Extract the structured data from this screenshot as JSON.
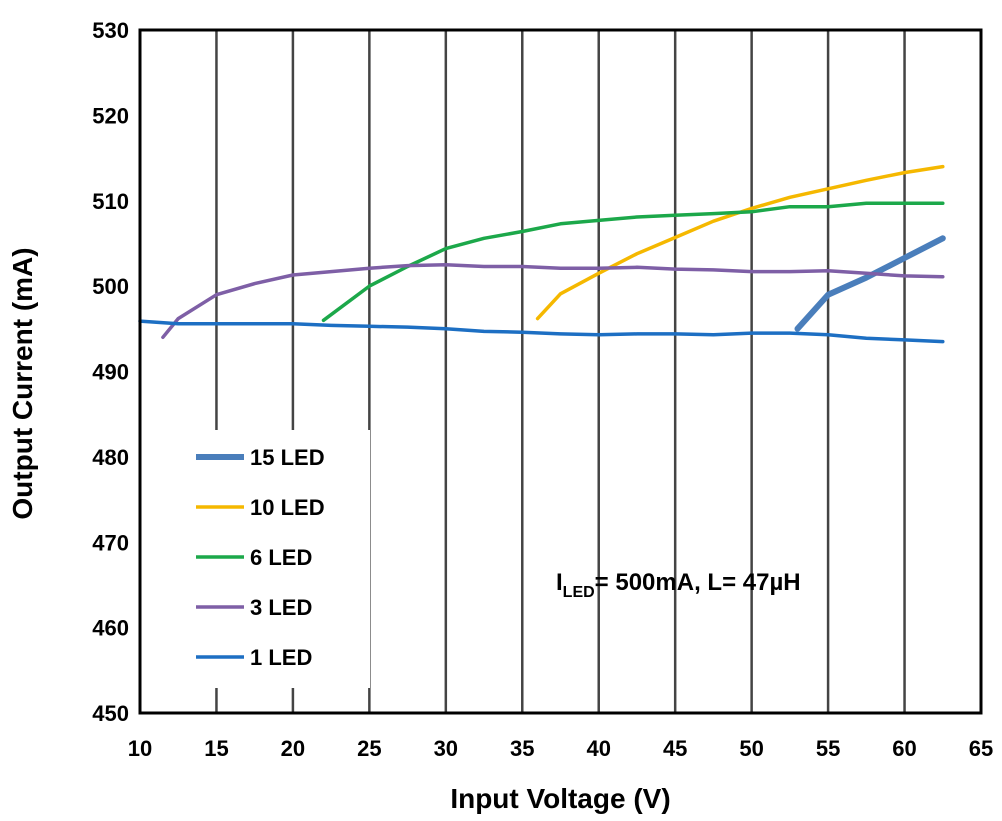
{
  "chart_data": {
    "type": "line",
    "title": "",
    "xlabel": "Input Voltage (V)",
    "ylabel": "Output Current (mA)",
    "xlim": [
      10,
      65
    ],
    "ylim": [
      450,
      530
    ],
    "xticks": [
      10,
      15,
      20,
      25,
      30,
      35,
      40,
      45,
      50,
      55,
      60,
      65
    ],
    "yticks": [
      450,
      460,
      470,
      480,
      490,
      500,
      510,
      520,
      530
    ],
    "grid": "vertical",
    "legend_position": "bottom-left",
    "annotation": {
      "main": "I",
      "sub": "LED",
      "rest": "= 500mA, L= 47µH"
    },
    "series": [
      {
        "name": "15 LED",
        "color": "#4a7ebb",
        "width": 6,
        "x": [
          53,
          55,
          57.5,
          60,
          62.5
        ],
        "y": [
          495,
          499,
          501,
          503.3,
          505.6
        ]
      },
      {
        "name": "10 LED",
        "color": "#f5b800",
        "width": 3.5,
        "x": [
          36,
          37.5,
          40,
          42.5,
          45,
          47.5,
          50,
          52.5,
          55,
          57.5,
          60,
          62.5
        ],
        "y": [
          496.2,
          499.1,
          501.5,
          503.8,
          505.7,
          507.6,
          509.1,
          510.4,
          511.4,
          512.4,
          513.3,
          514
        ]
      },
      {
        "name": "6 LED",
        "color": "#1ca84a",
        "width": 3.5,
        "x": [
          22,
          25,
          27.5,
          30,
          32.5,
          35,
          37.5,
          40,
          42.5,
          45,
          47.5,
          50,
          52.5,
          55,
          57.5,
          60,
          62.5
        ],
        "y": [
          496,
          500,
          502.3,
          504.4,
          505.6,
          506.4,
          507.3,
          507.7,
          508.1,
          508.3,
          508.5,
          508.7,
          509.3,
          509.3,
          509.7,
          509.7,
          509.7
        ]
      },
      {
        "name": "3 LED",
        "color": "#7e5fa6",
        "width": 3.5,
        "x": [
          11.5,
          12.5,
          15,
          17.5,
          20,
          22.5,
          25,
          27.5,
          30,
          32.5,
          35,
          37.5,
          40,
          42.5,
          45,
          47.5,
          50,
          52.5,
          55,
          57.5,
          60,
          62.5
        ],
        "y": [
          494,
          496.2,
          499,
          500.3,
          501.3,
          501.7,
          502.1,
          502.4,
          502.5,
          502.3,
          502.3,
          502.1,
          502.1,
          502.2,
          502,
          501.9,
          501.7,
          501.7,
          501.8,
          501.5,
          501.2,
          501.1
        ]
      },
      {
        "name": "1 LED",
        "color": "#1d6fc3",
        "width": 3.5,
        "x": [
          10,
          12.5,
          15,
          17.5,
          20,
          22.5,
          25,
          27.5,
          30,
          32.5,
          35,
          37.5,
          40,
          42.5,
          45,
          47.5,
          50,
          52.5,
          55,
          57.5,
          60,
          62.5
        ],
        "y": [
          495.9,
          495.6,
          495.6,
          495.6,
          495.6,
          495.4,
          495.3,
          495.2,
          495,
          494.7,
          494.6,
          494.4,
          494.3,
          494.4,
          494.4,
          494.3,
          494.5,
          494.5,
          494.3,
          493.9,
          493.7,
          493.5
        ]
      }
    ]
  }
}
